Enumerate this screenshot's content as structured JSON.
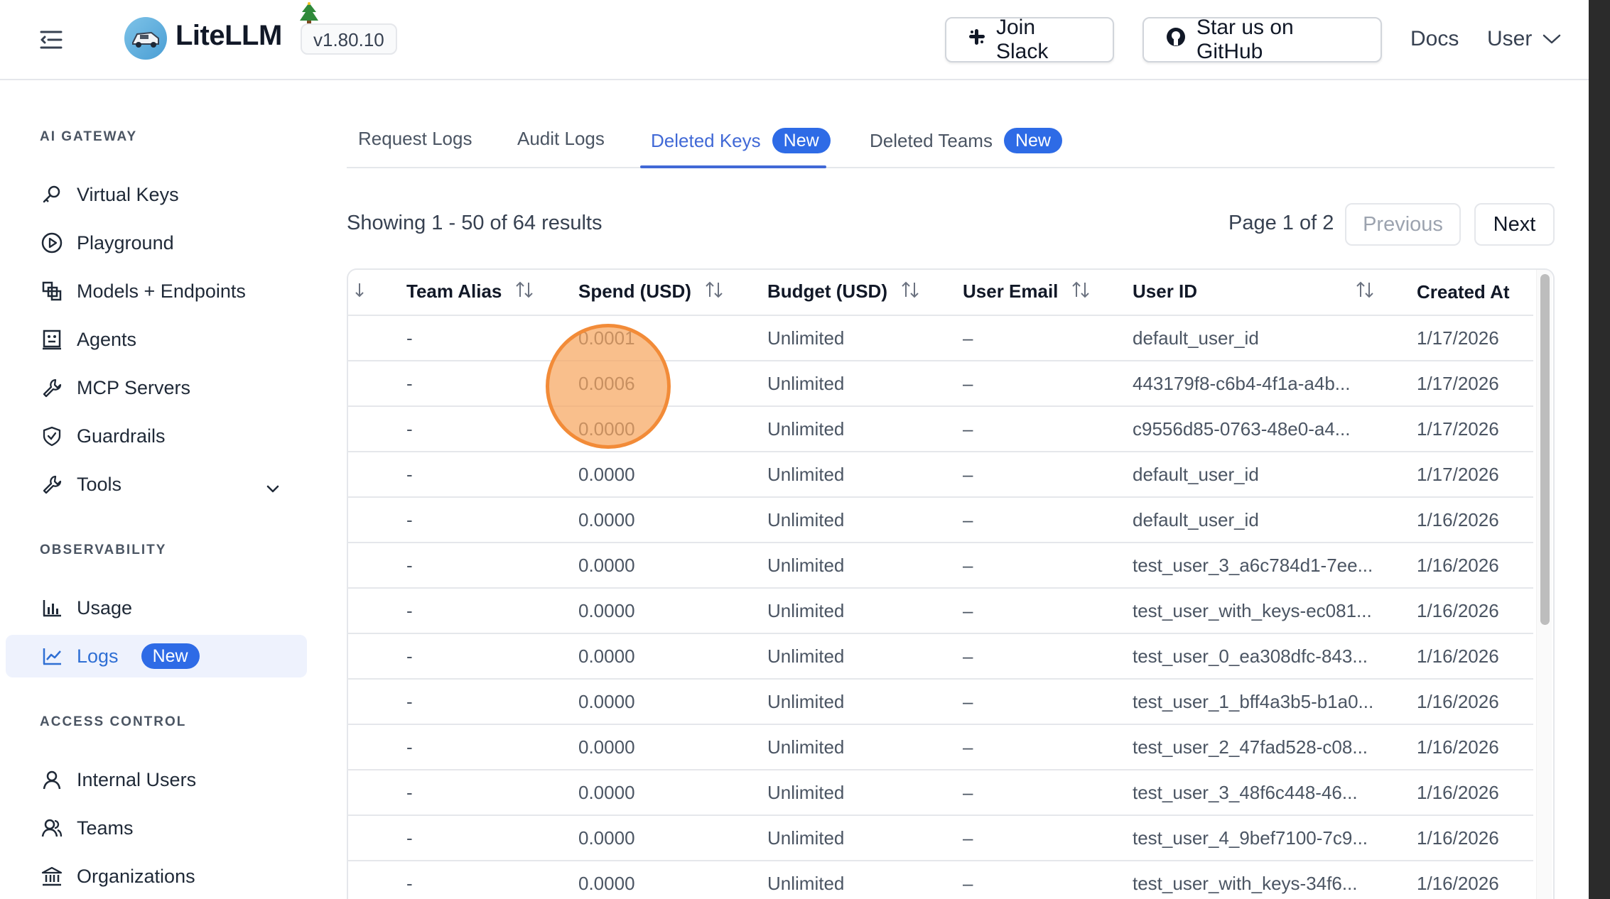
{
  "header": {
    "brand": "LiteLLM",
    "version": "v1.80.10",
    "join_slack": "Join Slack",
    "star_github": "Star us on GitHub",
    "docs": "Docs",
    "user": "User"
  },
  "sidebar": {
    "sections": [
      {
        "title": "AI GATEWAY",
        "items": [
          {
            "label": "Virtual Keys",
            "icon": "key-icon"
          },
          {
            "label": "Playground",
            "icon": "play-circle-icon"
          },
          {
            "label": "Models + Endpoints",
            "icon": "blocks-icon"
          },
          {
            "label": "Agents",
            "icon": "robot-icon"
          },
          {
            "label": "MCP Servers",
            "icon": "tool-icon"
          },
          {
            "label": "Guardrails",
            "icon": "shield-icon"
          },
          {
            "label": "Tools",
            "icon": "wrench-icon"
          }
        ]
      },
      {
        "title": "OBSERVABILITY",
        "items": [
          {
            "label": "Usage",
            "icon": "bar-chart-icon"
          },
          {
            "label": "Logs",
            "icon": "line-chart-icon",
            "badge": "New",
            "active": true
          }
        ]
      },
      {
        "title": "ACCESS CONTROL",
        "items": [
          {
            "label": "Internal Users",
            "icon": "user-icon"
          },
          {
            "label": "Teams",
            "icon": "team-icon"
          },
          {
            "label": "Organizations",
            "icon": "bank-icon"
          }
        ]
      }
    ]
  },
  "tabs": [
    {
      "label": "Request Logs"
    },
    {
      "label": "Audit Logs"
    },
    {
      "label": "Deleted Keys",
      "badge": "New",
      "active": true
    },
    {
      "label": "Deleted Teams",
      "badge": "New"
    }
  ],
  "results": {
    "summary": "Showing 1 - 50 of 64 results",
    "page": "Page 1 of 2",
    "previous": "Previous",
    "next": "Next"
  },
  "table": {
    "columns": [
      "Team Alias",
      "Spend (USD)",
      "Budget (USD)",
      "User Email",
      "User ID",
      "Created At"
    ],
    "rows": [
      [
        "-",
        "0.0001",
        "Unlimited",
        "–",
        "default_user_id",
        "1/17/2026"
      ],
      [
        "-",
        "0.0006",
        "Unlimited",
        "–",
        "443179f8-c6b4-4f1a-a4b...",
        "1/17/2026"
      ],
      [
        "-",
        "0.0000",
        "Unlimited",
        "–",
        "c9556d85-0763-48e0-a4...",
        "1/17/2026"
      ],
      [
        "-",
        "0.0000",
        "Unlimited",
        "–",
        "default_user_id",
        "1/17/2026"
      ],
      [
        "-",
        "0.0000",
        "Unlimited",
        "–",
        "default_user_id",
        "1/16/2026"
      ],
      [
        "-",
        "0.0000",
        "Unlimited",
        "–",
        "test_user_3_a6c784d1-7ee...",
        "1/16/2026"
      ],
      [
        "-",
        "0.0000",
        "Unlimited",
        "–",
        "test_user_with_keys-ec081...",
        "1/16/2026"
      ],
      [
        "-",
        "0.0000",
        "Unlimited",
        "–",
        "test_user_0_ea308dfc-843...",
        "1/16/2026"
      ],
      [
        "-",
        "0.0000",
        "Unlimited",
        "–",
        "test_user_1_bff4a3b5-b1a0...",
        "1/16/2026"
      ],
      [
        "-",
        "0.0000",
        "Unlimited",
        "–",
        "test_user_2_47fad528-c08...",
        "1/16/2026"
      ],
      [
        "-",
        "0.0000",
        "Unlimited",
        "–",
        "test_user_3_48f6c448-46...",
        "1/16/2026"
      ],
      [
        "-",
        "0.0000",
        "Unlimited",
        "–",
        "test_user_4_9bef7100-7c9...",
        "1/16/2026"
      ],
      [
        "-",
        "0.0000",
        "Unlimited",
        "–",
        "test_user_with_keys-34f6...",
        "1/16/2026"
      ]
    ]
  },
  "colors": {
    "accent": "#2e6be6",
    "tab_active": "#4169d6",
    "sidebar_active_bg": "#eef2fd",
    "click_marker": "#f28b38"
  }
}
